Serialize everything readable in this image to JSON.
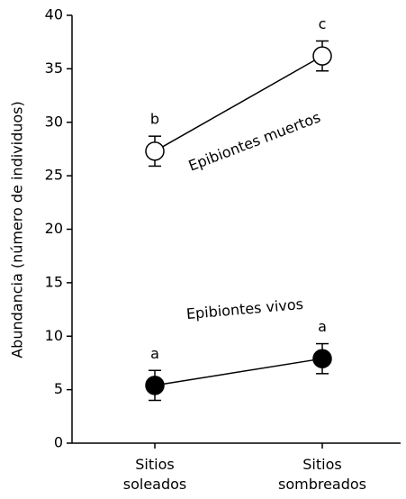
{
  "chart_data": {
    "type": "line",
    "y_label": "Abundancia (número de individuos)",
    "categories": [
      "Sitios soleados",
      "Sitios sombreados"
    ],
    "ylim": [
      0,
      40
    ],
    "yticks": [
      0,
      5,
      10,
      15,
      20,
      25,
      30,
      35,
      40
    ],
    "series": [
      {
        "name": "Epibiontes muertos",
        "color": "#ffffff",
        "values": [
          27.3,
          36.2
        ],
        "errors": [
          1.4,
          1.4
        ],
        "point_labels": [
          "b",
          "c"
        ]
      },
      {
        "name": "Epibiontes vivos",
        "color": "#000000",
        "values": [
          5.4,
          7.9
        ],
        "errors": [
          1.4,
          1.4
        ],
        "point_labels": [
          "a",
          "a"
        ]
      }
    ]
  }
}
